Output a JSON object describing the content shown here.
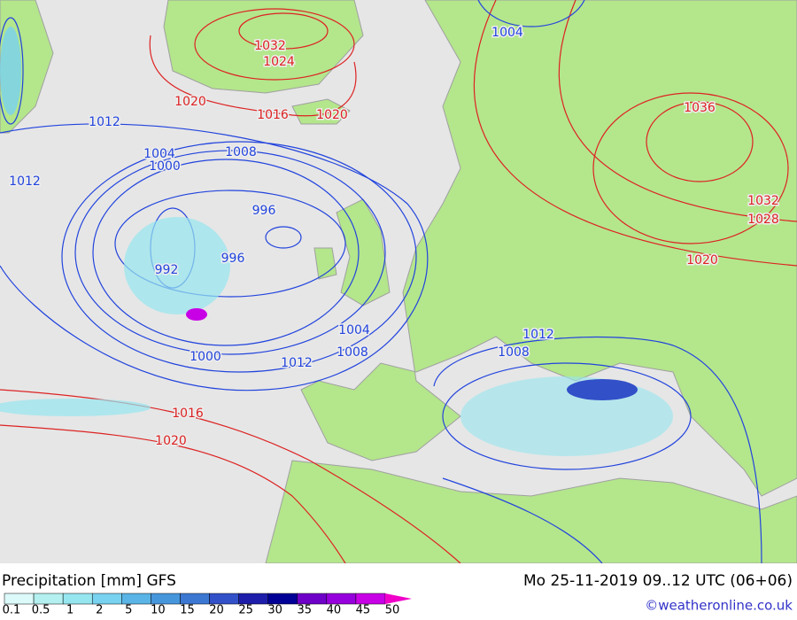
{
  "isobar_labels": [
    "1032",
    "1024",
    "1020",
    "1016",
    "1020",
    "1004",
    "1036",
    "1032",
    "1028",
    "1020",
    "1012",
    "1012",
    "1004",
    "1008",
    "1000",
    "996",
    "996",
    "992",
    "1004",
    "1008",
    "1000",
    "1012",
    "1012",
    "1008",
    "1016",
    "1020"
  ],
  "footer": {
    "title": "Precipitation [mm] GFS",
    "datetime": "Mo 25-11-2019 09..12 UTC (06+06)",
    "credit": "©weatheronline.co.uk"
  },
  "legend": {
    "labels": [
      "0.1",
      "0.5",
      "1",
      "2",
      "5",
      "10",
      "15",
      "20",
      "25",
      "30",
      "35",
      "40",
      "45",
      "50"
    ]
  }
}
